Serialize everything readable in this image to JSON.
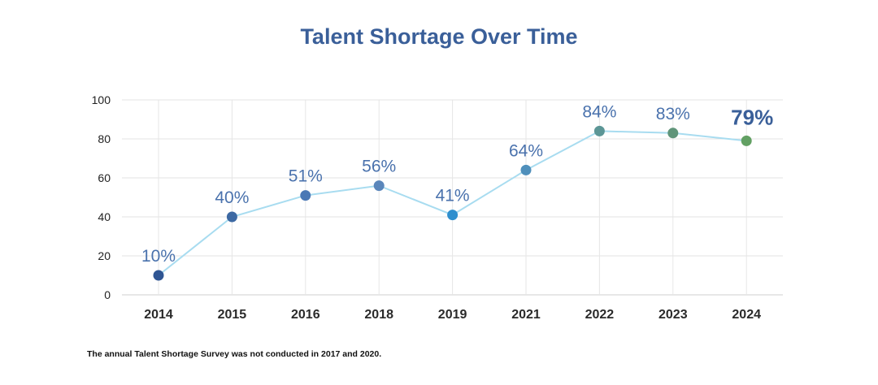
{
  "chart_data": {
    "type": "line",
    "title": "Talent Shortage Over Time",
    "categories": [
      "2014",
      "2015",
      "2016",
      "2018",
      "2019",
      "2021",
      "2022",
      "2023",
      "2024"
    ],
    "values": [
      10,
      40,
      51,
      56,
      41,
      64,
      84,
      83,
      79
    ],
    "data_labels": [
      "10%",
      "40%",
      "51%",
      "56%",
      "41%",
      "64%",
      "84%",
      "83%",
      "79%"
    ],
    "ylim": [
      0,
      100
    ],
    "yticks": [
      0,
      20,
      40,
      60,
      80,
      100
    ],
    "grid": true,
    "line_color": "#a8dcf0",
    "point_colors": [
      "#2f5593",
      "#3d69a3",
      "#4a78b5",
      "#5a86bb",
      "#2f8fce",
      "#4f8fbb",
      "#5c9696",
      "#5f9479",
      "#62a063"
    ],
    "label_color": "#4a72ad",
    "highlight_label_color": "#3a5f99",
    "highlight_index": 8
  },
  "footnote": "The annual Talent Shortage Survey was not conducted in 2017 and 2020."
}
